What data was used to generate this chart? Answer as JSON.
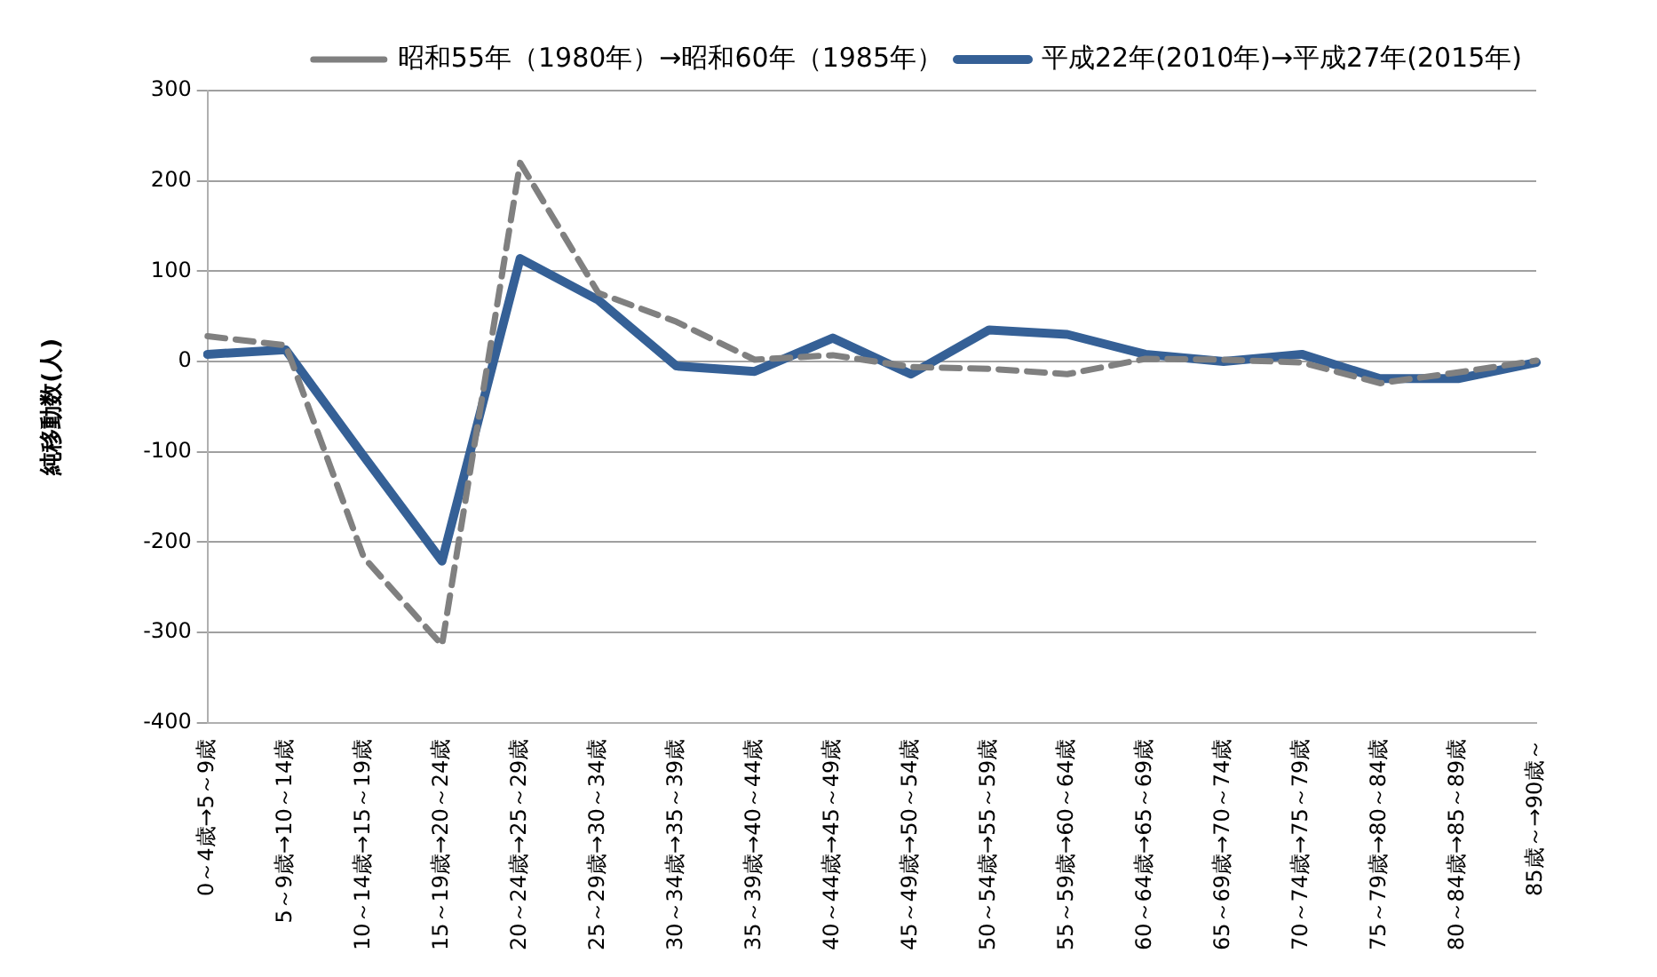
{
  "chart_data": {
    "type": "line",
    "ylabel": "純移動数(人)",
    "categories": [
      "0～4歳→5～9歳",
      "5～9歳→10～14歳",
      "10～14歳→15～19歳",
      "15～19歳→20～24歳",
      "20～24歳→25～29歳",
      "25～29歳→30～34歳",
      "30～34歳→35～39歳",
      "35～39歳→40～44歳",
      "40～44歳→45～49歳",
      "45～49歳→50～54歳",
      "50～54歳→55～59歳",
      "55～59歳→60～64歳",
      "60～64歳→65～69歳",
      "65～69歳→70～74歳",
      "70～74歳→75～79歳",
      "75～79歳→80～84歳",
      "80～84歳→85～89歳",
      "85歳～→90歳～"
    ],
    "series": [
      {
        "name": "昭和55年（1980年）→昭和60年（1985年）",
        "color": "#808080",
        "line_style": "dashed",
        "values": [
          28,
          18,
          -217,
          -314,
          220,
          76,
          44,
          2,
          7,
          -6,
          -8,
          -14,
          3,
          2,
          -1,
          -24,
          -12,
          1
        ]
      },
      {
        "name": "平成22年(2010年)→平成27年(2015年)",
        "color": "#356096",
        "line_style": "solid",
        "values": [
          8,
          13,
          -105,
          -221,
          114,
          68,
          -5,
          -11,
          26,
          -14,
          35,
          30,
          8,
          0,
          8,
          -19,
          -19,
          -1
        ]
      }
    ],
    "ylim": [
      -400,
      300
    ],
    "yticks": [
      -400,
      -300,
      -200,
      -100,
      0,
      100,
      200,
      300
    ],
    "grid": "y",
    "legend": "top right",
    "marker": "none"
  }
}
